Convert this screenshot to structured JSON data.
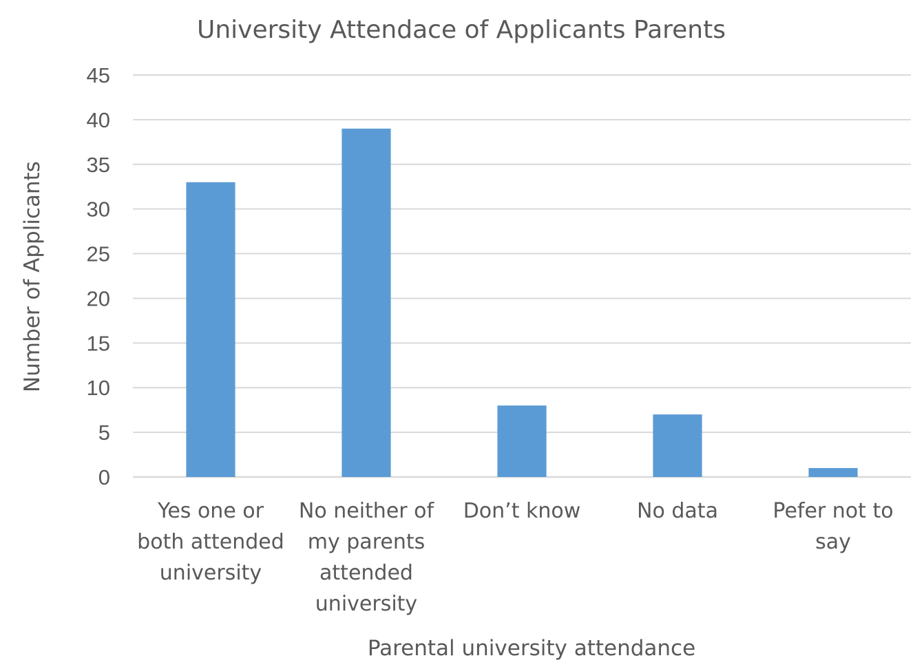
{
  "chart_data": {
    "type": "bar",
    "title": "University Attendace of Applicants Parents",
    "xlabel": "Parental university attendance",
    "ylabel": "Number of Applicants",
    "categories": [
      [
        "Yes one or",
        "both attended",
        "university"
      ],
      [
        "No neither of",
        "my parents",
        "attended",
        "university"
      ],
      [
        "Don’t know"
      ],
      [
        "No data"
      ],
      [
        "Pefer not to",
        "say"
      ]
    ],
    "values": [
      33,
      39,
      8,
      7,
      1
    ],
    "ylim": [
      0,
      45
    ],
    "yticks": [
      0,
      5,
      10,
      15,
      20,
      25,
      30,
      35,
      40,
      45
    ],
    "grid": true,
    "legend": "none",
    "colors": {
      "bar": "#5b9bd5",
      "grid": "#d9d9d9",
      "text": "#595959"
    }
  }
}
